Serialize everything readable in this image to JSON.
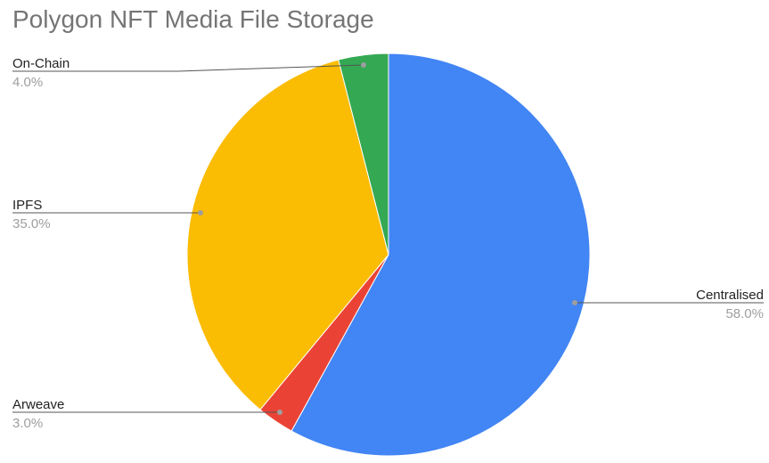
{
  "chart_data": {
    "type": "pie",
    "title": "Polygon NFT Media File Storage",
    "start": "top",
    "direction": "clockwise",
    "slices": [
      {
        "label": "Centralised",
        "value": 58.0,
        "display": "58.0%",
        "color": "#4285F4"
      },
      {
        "label": "Arweave",
        "value": 3.0,
        "display": "3.0%",
        "color": "#EA4335"
      },
      {
        "label": "IPFS",
        "value": 35.0,
        "display": "35.0%",
        "color": "#FBBC04"
      },
      {
        "label": "On-Chain",
        "value": 4.0,
        "display": "4.0%",
        "color": "#34A853"
      }
    ],
    "legend": "labels with leader lines"
  }
}
